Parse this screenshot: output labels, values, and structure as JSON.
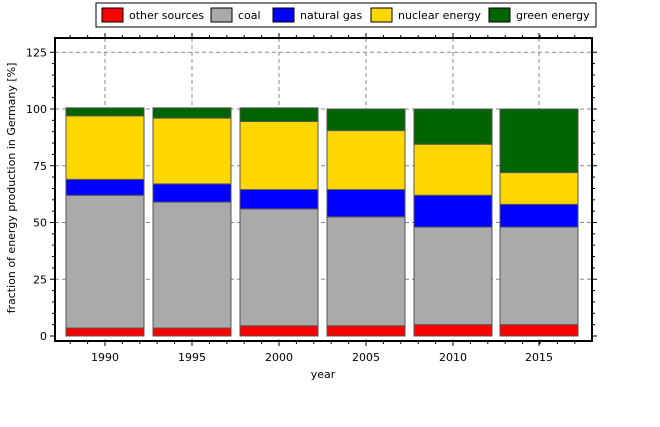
{
  "chart_data": {
    "type": "bar",
    "stacked": true,
    "xlabel": "year",
    "ylabel": "fraction of energy production in Germany [%]",
    "categories": [
      "1990",
      "1995",
      "2000",
      "2005",
      "2010",
      "2015"
    ],
    "ylim": [
      0,
      130
    ],
    "yticks": [
      0,
      25,
      50,
      75,
      100,
      125
    ],
    "grid": true,
    "legend_position": "top",
    "series": [
      {
        "name": "other sources",
        "color": "#ff0000",
        "values": [
          3.5,
          3.5,
          4.5,
          4.5,
          5.0,
          5.0
        ]
      },
      {
        "name": "coal",
        "color": "#aaaaaa",
        "values": [
          58.5,
          55.5,
          51.5,
          48.0,
          43.0,
          43.0
        ]
      },
      {
        "name": "natural gas",
        "color": "#0000ff",
        "values": [
          7.0,
          8.0,
          8.5,
          12.0,
          14.0,
          10.0
        ]
      },
      {
        "name": "nuclear energy",
        "color": "#ffd700",
        "values": [
          28.0,
          29.0,
          30.0,
          26.0,
          22.5,
          14.0
        ]
      },
      {
        "name": "green energy",
        "color": "#006400",
        "values": [
          3.5,
          4.5,
          6.0,
          9.5,
          15.5,
          28.0
        ]
      }
    ]
  }
}
